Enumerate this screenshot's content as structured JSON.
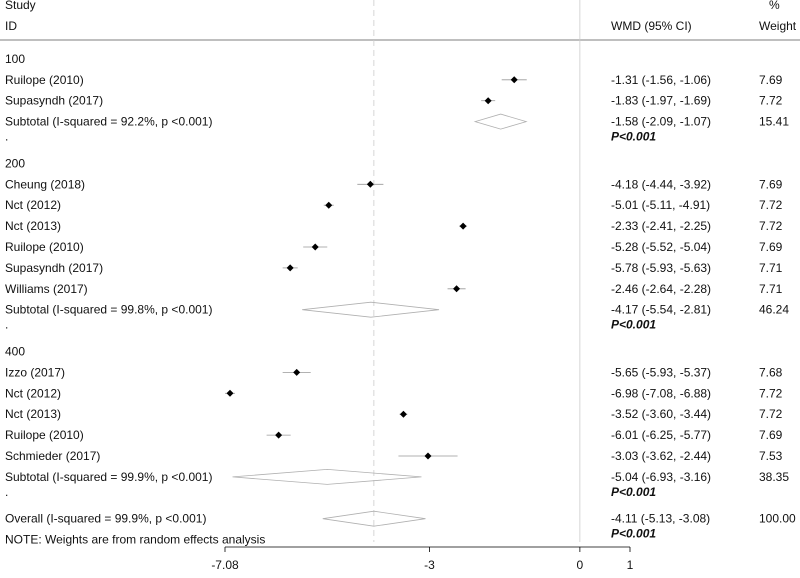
{
  "header": {
    "study_line1": "Study",
    "study_line2": "ID",
    "wmd": "WMD (95% CI)",
    "pct_line1": "%",
    "pct_line2": "Weight"
  },
  "chart_data": {
    "type": "forest",
    "effect_measure": "WMD (95% CI)",
    "null_line": 0,
    "overall_line": -4.11,
    "x_ticks": [
      {
        "value": -7.08,
        "label": "-7.08"
      },
      {
        "value": -3,
        "label": "-3"
      },
      {
        "value": 0,
        "label": "0"
      },
      {
        "value": 1,
        "label": "1"
      }
    ],
    "groups": [
      {
        "label": "100",
        "studies": [
          {
            "name": "Ruilope  (2010)",
            "wmd": -1.31,
            "lo": -1.56,
            "hi": -1.06,
            "ci_text": "-1.31 (-1.56, -1.06)",
            "weight": "7.69"
          },
          {
            "name": "Supasyndh  (2017)",
            "wmd": -1.83,
            "lo": -1.97,
            "hi": -1.69,
            "ci_text": "-1.83 (-1.97, -1.69)",
            "weight": "7.72"
          }
        ],
        "subtotal": {
          "label": "Subtotal  (I-squared = 92.2%, p <0.001)",
          "wmd": -1.58,
          "lo": -2.09,
          "hi": -1.07,
          "ci_text": "-1.58 (-2.09, -1.07)",
          "weight": "15.41",
          "p_text": "P<0.001"
        }
      },
      {
        "label": "200",
        "studies": [
          {
            "name": "Cheung  (2018)",
            "wmd": -4.18,
            "lo": -4.44,
            "hi": -3.92,
            "ci_text": "-4.18 (-4.44, -3.92)",
            "weight": "7.69"
          },
          {
            "name": "Nct  (2012)",
            "wmd": -5.01,
            "lo": -5.11,
            "hi": -4.91,
            "ci_text": "-5.01 (-5.11, -4.91)",
            "weight": "7.72"
          },
          {
            "name": "Nct  (2013)",
            "wmd": -2.33,
            "lo": -2.41,
            "hi": -2.25,
            "ci_text": "-2.33 (-2.41, -2.25)",
            "weight": "7.72"
          },
          {
            "name": "Ruilope  (2010)",
            "wmd": -5.28,
            "lo": -5.52,
            "hi": -5.04,
            "ci_text": "-5.28 (-5.52, -5.04)",
            "weight": "7.69"
          },
          {
            "name": "Supasyndh  (2017)",
            "wmd": -5.78,
            "lo": -5.93,
            "hi": -5.63,
            "ci_text": "-5.78 (-5.93, -5.63)",
            "weight": "7.71"
          },
          {
            "name": "Williams  (2017)",
            "wmd": -2.46,
            "lo": -2.64,
            "hi": -2.28,
            "ci_text": "-2.46 (-2.64, -2.28)",
            "weight": "7.71"
          }
        ],
        "subtotal": {
          "label": "Subtotal  (I-squared = 99.8%, p <0.001)",
          "wmd": -4.17,
          "lo": -5.54,
          "hi": -2.81,
          "ci_text": "-4.17 (-5.54, -2.81)",
          "weight": "46.24",
          "p_text": "P<0.001"
        }
      },
      {
        "label": "400",
        "studies": [
          {
            "name": "Izzo  (2017)",
            "wmd": -5.65,
            "lo": -5.93,
            "hi": -5.37,
            "ci_text": "-5.65 (-5.93, -5.37)",
            "weight": "7.68"
          },
          {
            "name": "Nct  (2012)",
            "wmd": -6.98,
            "lo": -7.08,
            "hi": -6.88,
            "ci_text": "-6.98 (-7.08, -6.88)",
            "weight": "7.72"
          },
          {
            "name": "Nct  (2013)",
            "wmd": -3.52,
            "lo": -3.6,
            "hi": -3.44,
            "ci_text": "-3.52 (-3.60, -3.44)",
            "weight": "7.72"
          },
          {
            "name": "Ruilope  (2010)",
            "wmd": -6.01,
            "lo": -6.25,
            "hi": -5.77,
            "ci_text": "-6.01 (-6.25, -5.77)",
            "weight": "7.69"
          },
          {
            "name": "Schmieder  (2017)",
            "wmd": -3.03,
            "lo": -3.62,
            "hi": -2.44,
            "ci_text": "-3.03 (-3.62, -2.44)",
            "weight": "7.53"
          }
        ],
        "subtotal": {
          "label": "Subtotal  (I-squared = 99.9%, p <0.001)",
          "wmd": -5.04,
          "lo": -6.93,
          "hi": -3.16,
          "ci_text": "-5.04 (-6.93, -3.16)",
          "weight": "38.35",
          "p_text": "P<0.001"
        }
      }
    ],
    "overall": {
      "label": "Overall  (I-squared = 99.9%, p <0.001)",
      "wmd": -4.11,
      "lo": -5.13,
      "hi": -3.08,
      "ci_text": "-4.11 (-5.13, -3.08)",
      "weight": "100.00",
      "p_text": "P<0.001"
    },
    "note": "NOTE: Weights are from random effects analysis",
    "colors": {
      "marker": "#000000",
      "ci_line": "#999999",
      "diamond": "#b0b0b0",
      "grid": "#cccccc",
      "axis": "#000000"
    }
  }
}
